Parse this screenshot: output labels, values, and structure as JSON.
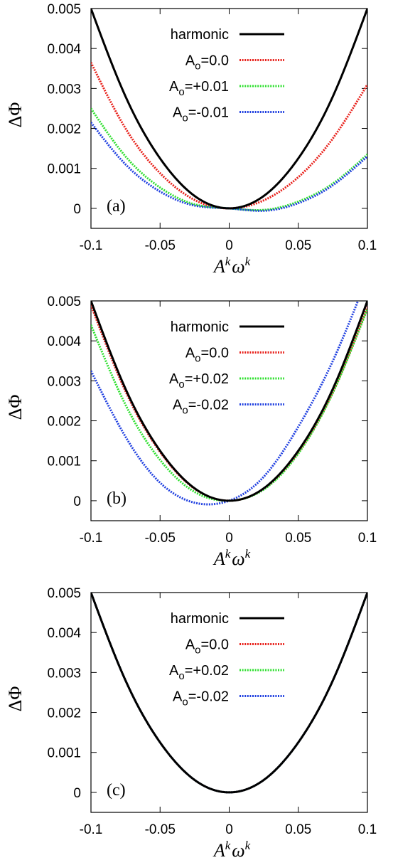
{
  "chart_data": [
    {
      "type": "line",
      "panel_label": "(a)",
      "xlabel": "A^k ω^k",
      "ylabel": "ΔΦ",
      "xlim": [
        -0.1,
        0.1
      ],
      "ylim": [
        -0.0005,
        0.005
      ],
      "xticks": [
        "-0.1",
        "-0.05",
        "0",
        "0.05",
        "0.1"
      ],
      "yticks": [
        "0",
        "0.001",
        "0.002",
        "0.003",
        "0.004",
        "0.005"
      ],
      "legend_position": "top-right",
      "series": [
        {
          "name": "harmonic",
          "color": "#000000",
          "style": "solid",
          "x": [
            -0.1,
            -0.075,
            -0.05,
            -0.025,
            0,
            0.025,
            0.05,
            0.075,
            0.1
          ],
          "y": [
            0.005,
            0.0028,
            0.00125,
            0.00031,
            0,
            0.00031,
            0.00125,
            0.0028,
            0.005
          ]
        },
        {
          "name": "A_o=0.0",
          "color": "#e8201a",
          "style": "dotted",
          "x": [
            -0.1,
            -0.075,
            -0.05,
            -0.025,
            0,
            0.025,
            0.05,
            0.075,
            0.1
          ],
          "y": [
            0.00365,
            0.002,
            0.00088,
            0.00021,
            0,
            0.0002,
            0.00078,
            0.00175,
            0.0031
          ]
        },
        {
          "name": "A_o=+0.01",
          "color": "#2fe02f",
          "style": "dotted",
          "x": [
            -0.1,
            -0.075,
            -0.05,
            -0.025,
            0,
            0.025,
            0.05,
            0.075,
            0.1
          ],
          "y": [
            0.0025,
            0.0013,
            0.00052,
            0.0001,
            0,
            -4e-05,
            0.00017,
            0.00062,
            0.00135
          ]
        },
        {
          "name": "A_o=-0.01",
          "color": "#1f3fe0",
          "style": "dotted",
          "x": [
            -0.1,
            -0.075,
            -0.05,
            -0.025,
            0,
            0.025,
            0.05,
            0.075,
            0.1
          ],
          "y": [
            0.00215,
            0.0011,
            0.00042,
            7e-05,
            0,
            -6e-05,
            0.00013,
            0.00058,
            0.0013
          ]
        }
      ]
    },
    {
      "type": "line",
      "panel_label": "(b)",
      "xlabel": "A^k ω^k",
      "ylabel": "ΔΦ",
      "xlim": [
        -0.1,
        0.1
      ],
      "ylim": [
        -0.0005,
        0.005
      ],
      "xticks": [
        "-0.1",
        "-0.05",
        "0",
        "0.05",
        "0.1"
      ],
      "yticks": [
        "0",
        "0.001",
        "0.002",
        "0.003",
        "0.004",
        "0.005"
      ],
      "legend_position": "top-right",
      "series": [
        {
          "name": "harmonic",
          "color": "#000000",
          "style": "solid",
          "x": [
            -0.1,
            -0.075,
            -0.05,
            -0.025,
            0,
            0.025,
            0.05,
            0.075,
            0.1
          ],
          "y": [
            0.005,
            0.0028,
            0.00125,
            0.00031,
            0,
            0.00031,
            0.00125,
            0.0028,
            0.005
          ]
        },
        {
          "name": "A_o=0.0",
          "color": "#e8201a",
          "style": "dotted",
          "x": [
            -0.1,
            -0.075,
            -0.05,
            -0.025,
            0,
            0.025,
            0.05,
            0.075,
            0.1
          ],
          "y": [
            0.0049,
            0.00274,
            0.00122,
            0.0003,
            0,
            0.0003,
            0.00121,
            0.00272,
            0.00485
          ]
        },
        {
          "name": "A_o=+0.02",
          "color": "#2fe02f",
          "style": "dotted",
          "x": [
            -0.1,
            -0.075,
            -0.05,
            -0.025,
            0,
            0.025,
            0.05,
            0.075,
            0.1
          ],
          "y": [
            0.0044,
            0.0024,
            0.00102,
            0.00022,
            0,
            0.00028,
            0.00118,
            0.0027,
            0.0048
          ]
        },
        {
          "name": "A_o=-0.02",
          "color": "#1f3fe0",
          "style": "dotted",
          "x": [
            -0.1,
            -0.075,
            -0.05,
            -0.025,
            0,
            0.025,
            0.05,
            0.075,
            0.1
          ],
          "y": [
            0.00325,
            0.0016,
            0.00045,
            -5e-05,
            0,
            0.0006,
            0.00185,
            0.0035,
            0.0056
          ]
        }
      ]
    },
    {
      "type": "line",
      "panel_label": "(c)",
      "xlabel": "A^k ω^k",
      "ylabel": "ΔΦ",
      "xlim": [
        -0.1,
        0.1
      ],
      "ylim": [
        -0.0005,
        0.005
      ],
      "xticks": [
        "-0.1",
        "-0.05",
        "0",
        "0.05",
        "0.1"
      ],
      "yticks": [
        "0",
        "0.001",
        "0.002",
        "0.003",
        "0.004",
        "0.005"
      ],
      "legend_position": "top-right",
      "series": [
        {
          "name": "harmonic",
          "color": "#000000",
          "style": "solid",
          "x": [
            -0.1,
            -0.075,
            -0.05,
            -0.025,
            0,
            0.025,
            0.05,
            0.075,
            0.1
          ],
          "y": [
            0.005,
            0.0028,
            0.00125,
            0.00031,
            0,
            0.00031,
            0.00125,
            0.0028,
            0.005
          ]
        },
        {
          "name": "A_o=0.0",
          "color": "#e8201a",
          "style": "dotted",
          "x": [
            -0.1,
            -0.075,
            -0.05,
            -0.025,
            0,
            0.025,
            0.05,
            0.075,
            0.1
          ],
          "y": [
            0.005,
            0.0028,
            0.00125,
            0.00031,
            0,
            0.00031,
            0.00125,
            0.0028,
            0.005
          ]
        },
        {
          "name": "A_o=+0.02",
          "color": "#2fe02f",
          "style": "dotted",
          "x": [
            -0.1,
            -0.075,
            -0.05,
            -0.025,
            0,
            0.025,
            0.05,
            0.075,
            0.1
          ],
          "y": [
            0.005,
            0.0028,
            0.00125,
            0.00031,
            0,
            0.00031,
            0.00125,
            0.0028,
            0.005
          ]
        },
        {
          "name": "A_o=-0.02",
          "color": "#1f3fe0",
          "style": "dotted",
          "x": [
            -0.1,
            -0.075,
            -0.05,
            -0.025,
            0,
            0.025,
            0.05,
            0.075,
            0.1
          ],
          "y": [
            0.005,
            0.0028,
            0.00125,
            0.00031,
            0,
            0.00031,
            0.00125,
            0.0028,
            0.005
          ]
        }
      ]
    }
  ]
}
